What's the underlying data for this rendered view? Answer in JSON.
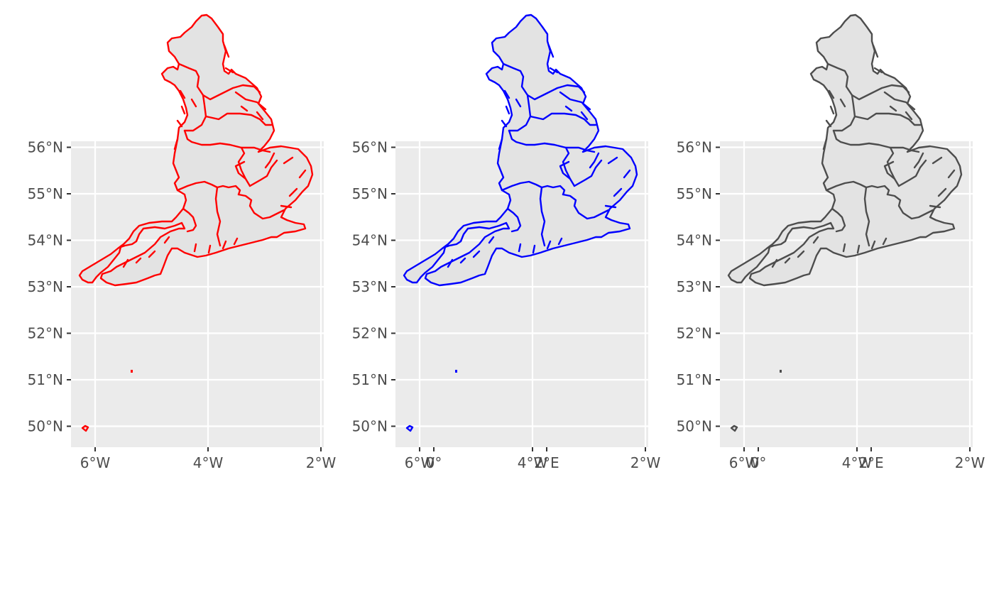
{
  "figure": {
    "panels": [
      {
        "name": "red",
        "outline_color": "#ff0000"
      },
      {
        "name": "blue",
        "outline_color": "#0000ff"
      },
      {
        "name": "grey",
        "outline_color": "#4d4d4d"
      }
    ],
    "fill_color": "#e3e3e3",
    "panel_background": "#ebebeb",
    "x_ticks": [
      {
        "value": -6,
        "label": "6°W"
      },
      {
        "value": -4,
        "label": "4°W"
      },
      {
        "value": -2,
        "label": "2°W"
      },
      {
        "value": 0,
        "label": "0°"
      },
      {
        "value": 2,
        "label": "2°E"
      }
    ],
    "y_ticks": [
      {
        "value": 50,
        "label": "50°N"
      },
      {
        "value": 51,
        "label": "51°N"
      },
      {
        "value": 52,
        "label": "52°N"
      },
      {
        "value": 53,
        "label": "53°N"
      },
      {
        "value": 54,
        "label": "54°N"
      },
      {
        "value": 55,
        "label": "55°N"
      },
      {
        "value": 56,
        "label": "56°N"
      }
    ],
    "lon_range": [
      -6.85,
      2.1
    ],
    "lat_range": [
      49.55,
      56.1
    ]
  }
}
